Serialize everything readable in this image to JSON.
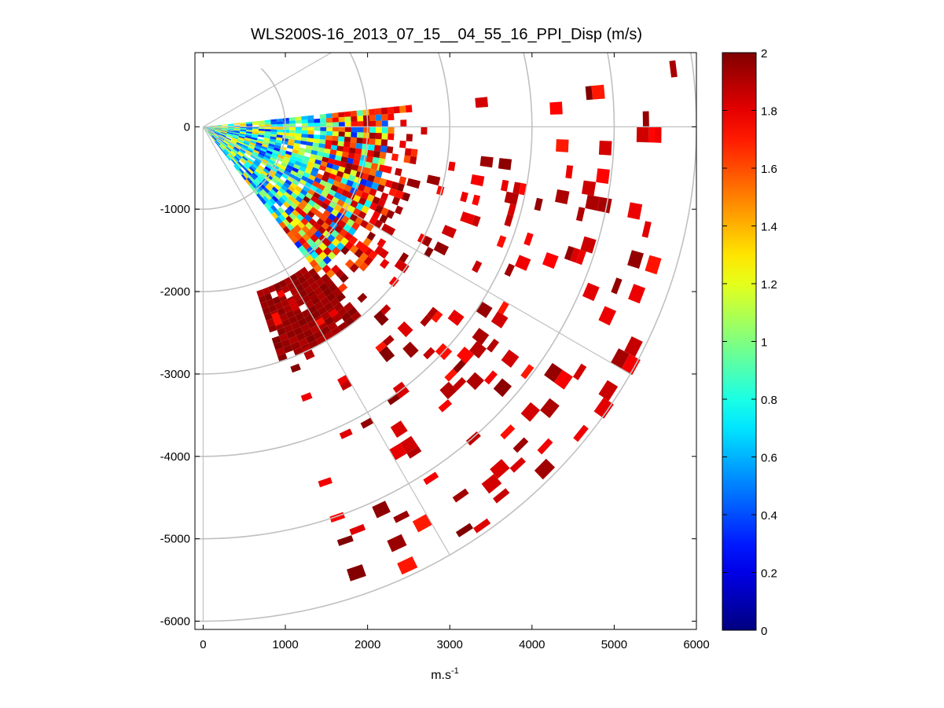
{
  "chart_data": {
    "type": "heatmap",
    "subtype": "ppi-polar-sector",
    "title": "WLS200S-16_2013_07_15__04_55_16_PPI_Disp (m/s)",
    "xlabel_base": "m.s",
    "xlabel_sup": "-1",
    "ylabel": "",
    "xlim": [
      -100,
      6000
    ],
    "ylim": [
      -6100,
      900
    ],
    "xticks": [
      0,
      1000,
      2000,
      3000,
      4000,
      5000,
      6000
    ],
    "xtick_labels": [
      "0",
      "1000",
      "2000",
      "3000",
      "4000",
      "5000",
      "6000"
    ],
    "yticks": [
      0,
      -1000,
      -2000,
      -3000,
      -4000,
      -5000,
      -6000
    ],
    "ytick_labels": [
      "0",
      "-1000",
      "-2000",
      "-3000",
      "-4000",
      "-5000",
      "-6000"
    ],
    "polar_grid": {
      "range_rings": [
        1000,
        2000,
        3000,
        4000,
        5000,
        6000
      ],
      "spokes_deg": [
        30,
        0,
        -30,
        -60,
        -90
      ]
    },
    "sector": {
      "az_min_deg": -72,
      "az_max_deg": 8,
      "max_range": 6000
    },
    "colorbar": {
      "colormap": "jet",
      "min": 0,
      "max": 2,
      "ticks": [
        0,
        0.2,
        0.4,
        0.6,
        0.8,
        1,
        1.2,
        1.4,
        1.6,
        1.8,
        2
      ],
      "tick_labels": [
        "0",
        "0.2",
        "0.4",
        "0.6",
        "0.8",
        "1",
        "1.2",
        "1.4",
        "1.6",
        "1.8",
        "2"
      ]
    },
    "regions": [
      {
        "description": "near-field mixed",
        "r_min": 0,
        "r_max": 2200,
        "az_min_deg": -52,
        "az_max_deg": 6,
        "value_range": [
          0.3,
          1.4
        ],
        "density": 0.95
      },
      {
        "description": "transition band",
        "r_min": 1500,
        "r_max": 2600,
        "az_min_deg": -52,
        "az_max_deg": 6,
        "value_range": [
          1.5,
          2.0
        ],
        "density": 0.55
      },
      {
        "description": "lower saturated block",
        "r_min": 2100,
        "r_max": 3000,
        "az_min_deg": -72,
        "az_max_deg": -50,
        "value_range": [
          1.9,
          2.0
        ],
        "density": 0.9
      },
      {
        "description": "sparse far-field returns",
        "r_min": 2200,
        "r_max": 5900,
        "az_min_deg": -72,
        "az_max_deg": 8,
        "value_range": [
          1.7,
          2.0
        ],
        "density": 0.07
      }
    ]
  }
}
